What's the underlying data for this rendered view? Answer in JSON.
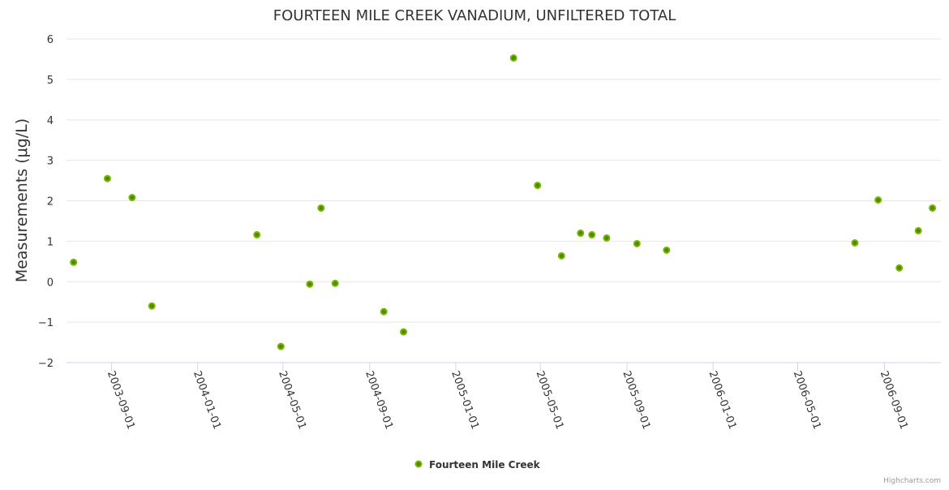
{
  "chart_data": {
    "type": "scatter",
    "title": "FOURTEEN MILE CREEK VANADIUM, UNFILTERED TOTAL",
    "xlabel": "",
    "ylabel": "Measurements (μg/L)",
    "ylim": [
      -2,
      6
    ],
    "xlim": [
      "2003-06-29",
      "2006-11-20"
    ],
    "yticks": [
      6,
      5,
      4,
      3,
      2,
      1,
      0,
      -1,
      -2
    ],
    "ytick_labels": [
      "6",
      "5",
      "4",
      "3",
      "2",
      "1",
      "0",
      "−1",
      "−2"
    ],
    "xticks": [
      "2003-09-01",
      "2004-01-01",
      "2004-05-01",
      "2004-09-01",
      "2005-01-01",
      "2005-05-01",
      "2005-09-01",
      "2006-01-01",
      "2006-05-01",
      "2006-09-01"
    ],
    "grid": true,
    "legend_position": "bottom-center",
    "series": [
      {
        "name": "Fourteen Mile Creek",
        "color": "#7cb500",
        "points": [
          {
            "x": "2003-07-09",
            "y": 0.48
          },
          {
            "x": "2003-08-26",
            "y": 2.55
          },
          {
            "x": "2003-09-30",
            "y": 2.08
          },
          {
            "x": "2003-10-28",
            "y": -0.6
          },
          {
            "x": "2004-03-25",
            "y": 1.16
          },
          {
            "x": "2004-04-28",
            "y": -1.6
          },
          {
            "x": "2004-06-08",
            "y": -0.06
          },
          {
            "x": "2004-06-24",
            "y": 1.82
          },
          {
            "x": "2004-07-14",
            "y": -0.04
          },
          {
            "x": "2004-09-21",
            "y": -0.74
          },
          {
            "x": "2004-10-19",
            "y": -1.24
          },
          {
            "x": "2005-03-24",
            "y": 5.53
          },
          {
            "x": "2005-04-27",
            "y": 2.38
          },
          {
            "x": "2005-05-31",
            "y": 0.64
          },
          {
            "x": "2005-06-27",
            "y": 1.2
          },
          {
            "x": "2005-07-13",
            "y": 1.16
          },
          {
            "x": "2005-08-03",
            "y": 1.08
          },
          {
            "x": "2005-09-15",
            "y": 0.94
          },
          {
            "x": "2005-10-27",
            "y": 0.78
          },
          {
            "x": "2006-07-21",
            "y": 0.96
          },
          {
            "x": "2006-08-23",
            "y": 2.02
          },
          {
            "x": "2006-09-22",
            "y": 0.34
          },
          {
            "x": "2006-10-19",
            "y": 1.26
          },
          {
            "x": "2006-11-08",
            "y": 1.82
          }
        ]
      }
    ]
  },
  "credits": "Highcharts.com"
}
